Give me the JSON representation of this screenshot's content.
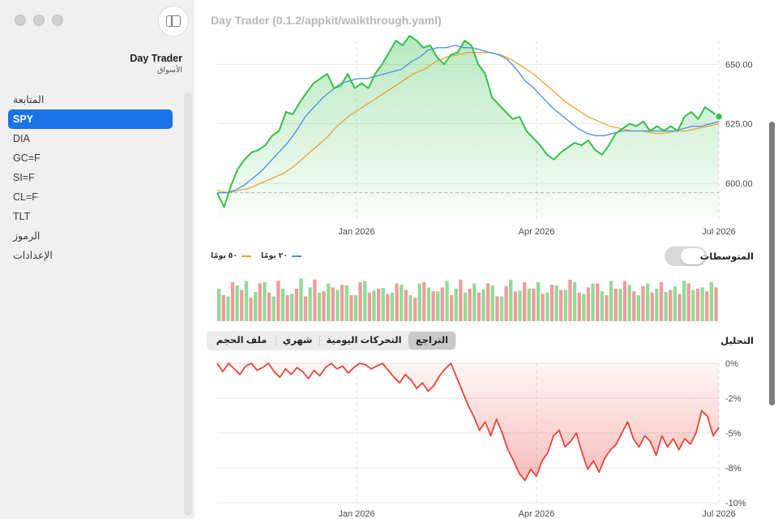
{
  "window": {
    "title": "Day Trader (0.1.2/appkit/walkthrough.yaml)"
  },
  "sidebar": {
    "app_title": "Day Trader",
    "section_subtitle": "الأسواق",
    "items": [
      {
        "label": "المتابعة",
        "selected": false
      },
      {
        "label": "SPY",
        "selected": true
      },
      {
        "label": "DIA",
        "selected": false
      },
      {
        "label": "GC=F",
        "selected": false
      },
      {
        "label": "SI=F",
        "selected": false
      },
      {
        "label": "CL=F",
        "selected": false
      },
      {
        "label": "TLT",
        "selected": false
      },
      {
        "label": "الرموز",
        "selected": false
      },
      {
        "label": "الإعدادات",
        "selected": false
      }
    ]
  },
  "moving_averages": {
    "label": "المتوسطات",
    "toggle_on": false,
    "legend": [
      {
        "label": "٢٠ يومًا",
        "color": "#4a8fe7"
      },
      {
        "label": "٥٠ يومًا",
        "color": "#f0a030"
      }
    ]
  },
  "analysis": {
    "label": "التحليل",
    "tabs": [
      "التراجع",
      "التحركات اليومية",
      "شهري",
      "ملف الحجم"
    ],
    "active_tab": "التراجع"
  },
  "colors": {
    "price_line": "#34c048",
    "ma20": "#4a8fe7",
    "ma50": "#f0a030",
    "volume_up": "#8fdc96",
    "volume_down": "#f19a9a",
    "drawdown": "#e8443a",
    "accent": "#1a73e8"
  },
  "chart_data": [
    {
      "type": "line",
      "title": "",
      "x_ticks": [
        "Jan 2026",
        "Apr 2026",
        "Jul 2026"
      ],
      "y_ticks": [
        "600.00",
        "625.00",
        "650.00"
      ],
      "ylim": [
        585,
        660
      ],
      "series": [
        {
          "name": "",
          "values": [
            596,
            590,
            599,
            606,
            610,
            613,
            614,
            616,
            620,
            622,
            630,
            629,
            634,
            638,
            642,
            644,
            646,
            640,
            641,
            646,
            640,
            642,
            640,
            646,
            650,
            655,
            660,
            658,
            662,
            660,
            657,
            658,
            653,
            650,
            654,
            655,
            660,
            658,
            650,
            646,
            636,
            633,
            630,
            627,
            628,
            622,
            619,
            616,
            612,
            610,
            613,
            615,
            617,
            616,
            618,
            614,
            612,
            616,
            621,
            623,
            625,
            624,
            626,
            622,
            624,
            622,
            624,
            622,
            628,
            630,
            627,
            632,
            630,
            628
          ]
        },
        {
          "name": "٢٠ يومًا",
          "values": [
            596,
            596,
            597,
            599,
            602,
            605,
            609,
            613,
            617,
            622,
            628,
            632,
            636,
            639,
            642,
            643,
            644,
            644,
            645,
            646,
            647,
            648,
            651,
            653,
            656,
            657,
            657,
            658,
            657,
            657,
            656,
            655,
            654,
            652,
            648,
            643,
            640,
            636,
            632,
            629,
            626,
            623,
            621,
            620,
            620,
            621,
            622,
            622,
            622,
            622,
            622,
            622,
            622,
            623,
            624,
            624,
            625,
            626
          ]
        },
        {
          "name": "٥٠ يومًا",
          "values": [
            597,
            596,
            597,
            598,
            600,
            602,
            604,
            607,
            611,
            615,
            619,
            624,
            628,
            631,
            634,
            637,
            640,
            643,
            646,
            648,
            651,
            653,
            654,
            655,
            655,
            655,
            654,
            652,
            649,
            646,
            642,
            638,
            634,
            631,
            628,
            626,
            624,
            623,
            622,
            622,
            621,
            621,
            622,
            622,
            623,
            624,
            625
          ]
        }
      ],
      "reference_line": 596
    },
    {
      "type": "bar",
      "title": "",
      "up_values": [
        50,
        38,
        55,
        62,
        45,
        60,
        38,
        50,
        42,
        66,
        52,
        44,
        58,
        48,
        55,
        40,
        62,
        47,
        51,
        44,
        56,
        40,
        58,
        52,
        46,
        62,
        50,
        44,
        58,
        49,
        55,
        38,
        64,
        47,
        50,
        60,
        44,
        55,
        48,
        60,
        42,
        58,
        46,
        62,
        50,
        56,
        40,
        58,
        50,
        45,
        54,
        62,
        48,
        52,
        60
      ],
      "down_values": [
        40,
        60,
        48,
        36,
        58,
        44,
        62,
        40,
        50,
        38,
        64,
        46,
        52,
        56,
        40,
        60,
        44,
        50,
        42,
        58,
        48,
        36,
        60,
        46,
        52,
        40,
        64,
        50,
        44,
        58,
        38,
        54,
        46,
        60,
        50,
        42,
        56,
        48,
        64,
        44,
        52,
        58,
        40,
        50,
        62,
        46,
        54,
        44,
        60,
        48,
        42,
        58,
        50,
        46,
        52
      ]
    },
    {
      "type": "area",
      "title": "",
      "x_ticks": [
        "Jan 2026",
        "Apr 2026",
        "Jul 2026"
      ],
      "y_ticks": [
        "0%",
        "-2%",
        "-5%",
        "-8%",
        "-10%"
      ],
      "ylim": [
        -10,
        0
      ],
      "values": [
        0,
        -0.6,
        0,
        -0.4,
        -0.8,
        -0.2,
        0,
        -0.5,
        -0.3,
        0,
        -0.6,
        -1,
        -0.4,
        -0.8,
        -0.3,
        -0.6,
        -1.1,
        -0.5,
        -0.9,
        -0.3,
        0,
        -0.4,
        -0.2,
        -0.7,
        -0.3,
        0,
        -0.1,
        -0.4,
        -0.2,
        0,
        -0.5,
        -1.0,
        -1.4,
        -0.8,
        -1.2,
        -1.8,
        -1.4,
        -2.0,
        -1.6,
        -0.9,
        -0.4,
        0,
        -1.0,
        -2.0,
        -3.0,
        -3.8,
        -4.8,
        -4.2,
        -5.2,
        -4.0,
        -5.0,
        -6.2,
        -7.0,
        -7.9,
        -8.4,
        -7.6,
        -8.1,
        -7.0,
        -6.4,
        -5.2,
        -4.8,
        -6.0,
        -5.6,
        -5.0,
        -6.4,
        -7.6,
        -7.0,
        -7.8,
        -6.8,
        -6.2,
        -5.8,
        -5.0,
        -4.2,
        -5.4,
        -6.0,
        -5.2,
        -5.6,
        -6.6,
        -5.2,
        -6.0,
        -5.4,
        -6.2,
        -5.4,
        -5.8,
        -5.0,
        -3.4,
        -3.8,
        -5.2,
        -4.6
      ]
    }
  ]
}
